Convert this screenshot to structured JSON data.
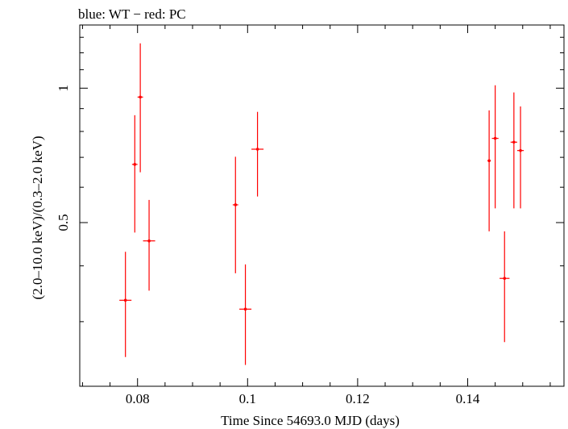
{
  "chart_data": {
    "type": "scatter",
    "title": "blue: WT − red: PC",
    "xlabel": "Time Since 54693.0 MJD (days)",
    "ylabel": "(2.0–10.0 keV)/(0.3–2.0 keV)",
    "xlim": [
      0.0695,
      0.1575
    ],
    "ylim": [
      0.215,
      1.385
    ],
    "yscale": "log",
    "x_ticks": [
      {
        "value": 0.08,
        "label": "0.08"
      },
      {
        "value": 0.1,
        "label": "0.1"
      },
      {
        "value": 0.12,
        "label": "0.12"
      },
      {
        "value": 0.14,
        "label": "0.14"
      }
    ],
    "y_ticks": [
      {
        "value": 0.5,
        "label": "0.5"
      },
      {
        "value": 1.0,
        "label": "1"
      }
    ],
    "grid": false,
    "series": [
      {
        "color": "#ff0000",
        "points": [
          {
            "x": 0.0778,
            "y": 0.335,
            "xerr": 0.0011,
            "ylo": 0.25,
            "yhi": 0.43
          },
          {
            "x": 0.0795,
            "y": 0.675,
            "xerr": 0.0005,
            "ylo": 0.475,
            "yhi": 0.87
          },
          {
            "x": 0.0805,
            "y": 0.955,
            "xerr": 0.0005,
            "ylo": 0.648,
            "yhi": 1.26
          },
          {
            "x": 0.0821,
            "y": 0.455,
            "xerr": 0.0011,
            "ylo": 0.352,
            "yhi": 0.562
          },
          {
            "x": 0.0978,
            "y": 0.548,
            "xerr": 0.0005,
            "ylo": 0.385,
            "yhi": 0.702
          },
          {
            "x": 0.0996,
            "y": 0.32,
            "xerr": 0.0011,
            "ylo": 0.24,
            "yhi": 0.403
          },
          {
            "x": 0.1018,
            "y": 0.73,
            "xerr": 0.0011,
            "ylo": 0.572,
            "yhi": 0.885
          },
          {
            "x": 0.1439,
            "y": 0.688,
            "xerr": 0.0003,
            "ylo": 0.478,
            "yhi": 0.892
          },
          {
            "x": 0.145,
            "y": 0.772,
            "xerr": 0.0006,
            "ylo": 0.538,
            "yhi": 1.015
          },
          {
            "x": 0.1467,
            "y": 0.375,
            "xerr": 0.0009,
            "ylo": 0.27,
            "yhi": 0.478
          },
          {
            "x": 0.1484,
            "y": 0.757,
            "xerr": 0.0006,
            "ylo": 0.538,
            "yhi": 0.978
          },
          {
            "x": 0.1496,
            "y": 0.725,
            "xerr": 0.0006,
            "ylo": 0.538,
            "yhi": 0.91
          }
        ]
      }
    ]
  }
}
